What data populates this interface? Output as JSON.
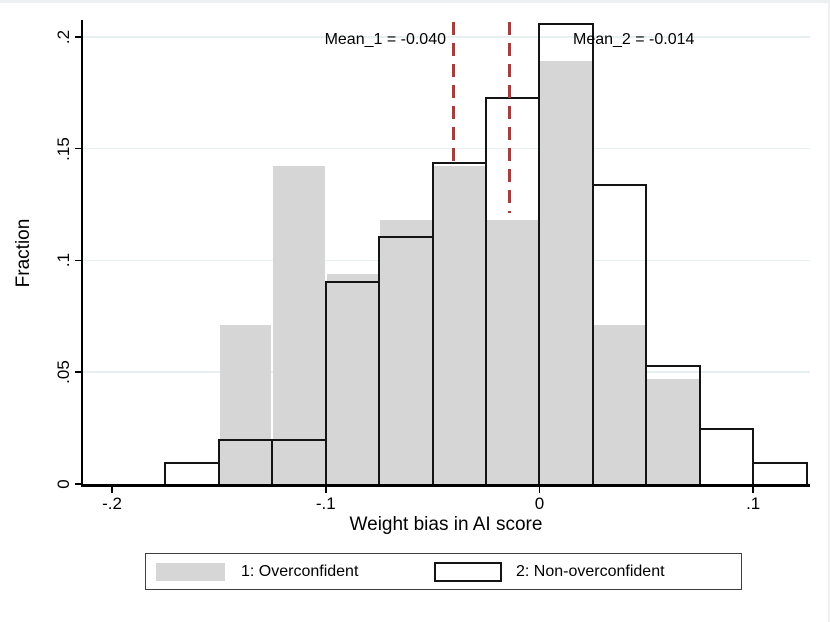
{
  "figure": {
    "x_axis_title": "Weight bias in AI score",
    "y_axis_title": "Fraction",
    "mean1_label": "Mean_1 = -0.040",
    "mean2_label": "Mean_2 = -0.014",
    "legend": {
      "item1_label": "1: Overconfident",
      "item2_label": "2: Non-overconfident"
    }
  },
  "chart_data": {
    "type": "bar",
    "subtype": "overlaid-histogram",
    "title": "",
    "xlabel": "Weight bias in AI score",
    "ylabel": "Fraction",
    "bin_width": 0.025,
    "bin_left_edges": [
      -0.175,
      -0.15,
      -0.125,
      -0.1,
      -0.075,
      -0.05,
      -0.025,
      0,
      0.025,
      0.05,
      0.075,
      0.1
    ],
    "series": [
      {
        "name": "1: Overconfident",
        "style": "filled",
        "fill": "#d6d6d6",
        "values": [
          0,
          0.071,
          0.142,
          0.094,
          0.118,
          0.142,
          0.118,
          0.189,
          0.071,
          0.047,
          0,
          0
        ]
      },
      {
        "name": "2: Non-overconfident",
        "style": "outline",
        "stroke": "#141414",
        "values": [
          0.01,
          0.02,
          0.02,
          0.091,
          0.111,
          0.144,
          0.173,
          0.206,
          0.134,
          0.053,
          0.025,
          0.01
        ]
      }
    ],
    "x_ticks": [
      -0.2,
      -0.1,
      0,
      0.1
    ],
    "x_tick_labels": [
      "-.2",
      "-.1",
      "0",
      ".1"
    ],
    "y_ticks": [
      0,
      0.05,
      0.1,
      0.15,
      0.2
    ],
    "y_tick_labels": [
      "0",
      ".05",
      ".1",
      ".15",
      ".2"
    ],
    "xlim": [
      -0.2136,
      0.1266
    ],
    "ylim": [
      0,
      0.2075
    ],
    "grid": true,
    "legend_position": "bottom",
    "mean_lines": [
      {
        "label": "Mean_1 = -0.040",
        "x": -0.04,
        "y_top": 0.2065,
        "y_bottom": 0.144,
        "color": "#a33e3e"
      },
      {
        "label": "Mean_2 = -0.014",
        "x": -0.014,
        "y_top": 0.2065,
        "y_bottom": 0.121,
        "color": "#a33e3e"
      }
    ],
    "colors": {
      "bar_fill": "#d6d6d6",
      "bar_outline": "#141414",
      "gridline": "#e7eff0",
      "mean_line": "#a33e3e",
      "axis": "#000000"
    }
  }
}
